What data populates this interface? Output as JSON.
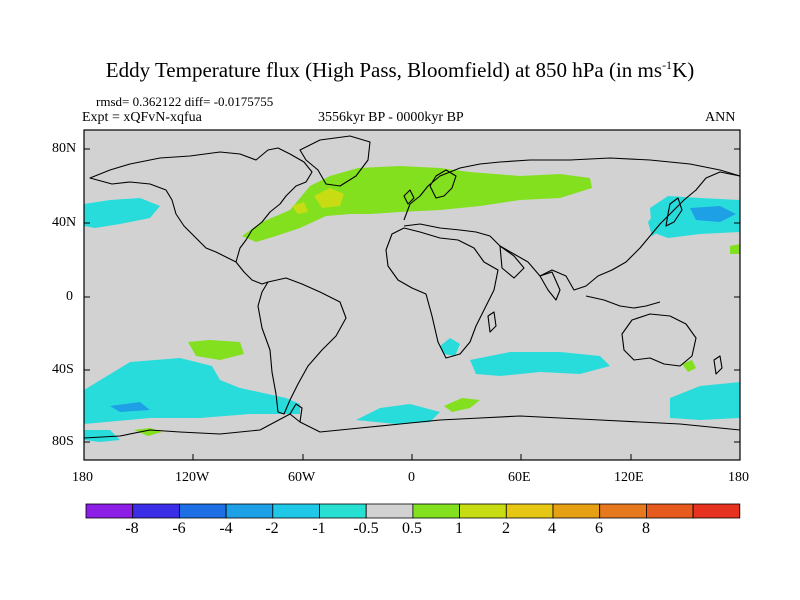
{
  "title": {
    "main": "Eddy Temperature flux (High Pass, Bloomfield) at 850 hPa (in ms",
    "sup": "-1",
    "end": "K)"
  },
  "stats": {
    "rmsd_line": "rmsd= 0.362122 diff= -0.0175755",
    "expt_line": "Expt = xQFvN-xqfua",
    "period": "3556kyr BP - 0000kyr BP",
    "season": "ANN"
  },
  "axes": {
    "lat_ticks": [
      "80N",
      "40N",
      "0",
      "40S",
      "80S"
    ],
    "lon_ticks": [
      "180",
      "120W",
      "60W",
      "0",
      "60E",
      "120E",
      "180"
    ]
  },
  "colorbar": {
    "colors": [
      "#8c1ee6",
      "#3c2ee6",
      "#1e6ee6",
      "#1ea0e6",
      "#1ec8e6",
      "#28e0d2",
      "#d2d2d2",
      "#82e01e",
      "#c8dc14",
      "#e6c814",
      "#e6a014",
      "#e6781e",
      "#e65a1e",
      "#e6321e"
    ],
    "labels": [
      "-8",
      "-6",
      "-4",
      "-2",
      "-1",
      "-0.5",
      "0.5",
      "1",
      "2",
      "4",
      "6",
      "8"
    ]
  },
  "map_colors": {
    "background": "#d2d2d2",
    "cyan": "#28dcdc",
    "blue": "#1ea0e6",
    "green": "#82e01e",
    "yellow": "#c8dc14",
    "coast": "#000000"
  }
}
